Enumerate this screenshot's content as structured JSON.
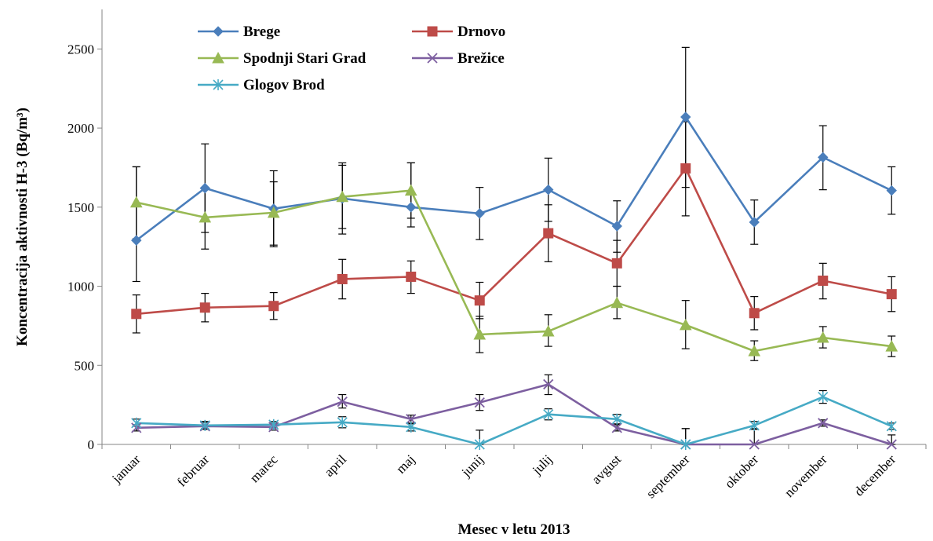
{
  "chart_data": {
    "type": "line",
    "xlabel": "Mesec v letu 2013",
    "ylabel": "Koncentracija aktivnosti H-3 (Bq/m³)",
    "ylim": [
      0,
      2750
    ],
    "yticks": [
      "0",
      "500",
      "1000",
      "1500",
      "2000",
      "2500"
    ],
    "grid": false,
    "legend_position": "top-left",
    "categories": [
      "januar",
      "februar",
      "marec",
      "april",
      "maj",
      "junij",
      "julij",
      "avgust",
      "september",
      "oktober",
      "november",
      "december"
    ],
    "series": [
      {
        "name": "Brege",
        "color": "#4a7ebb",
        "marker": "diamond",
        "values": [
          1290,
          1620,
          1490,
          1555,
          1500,
          1460,
          1610,
          1380,
          2070,
          1405,
          1815,
          1605
        ],
        "err_low": [
          1030,
          1340,
          1250,
          1330,
          1375,
          1295,
          1410,
          1215,
          1625,
          1265,
          1610,
          1455
        ],
        "err_high": [
          1755,
          1900,
          1730,
          1780,
          1780,
          1625,
          1810,
          1540,
          2510,
          1545,
          2015,
          1755
        ]
      },
      {
        "name": "Drnovo",
        "color": "#be4b48",
        "marker": "square",
        "values": [
          825,
          865,
          875,
          1045,
          1060,
          910,
          1335,
          1145,
          1745,
          830,
          1035,
          950
        ],
        "err_low": [
          705,
          775,
          790,
          920,
          955,
          795,
          1155,
          1000,
          1445,
          725,
          920,
          840
        ],
        "err_high": [
          945,
          955,
          960,
          1170,
          1160,
          1025,
          1515,
          1290,
          2040,
          935,
          1145,
          1060
        ]
      },
      {
        "name": "Spodnji Stari Grad",
        "color": "#98b954",
        "marker": "triangle",
        "values": [
          1530,
          1435,
          1465,
          1565,
          1605,
          695,
          715,
          895,
          755,
          590,
          675,
          620
        ],
        "err_low": [
          1300,
          1235,
          1260,
          1365,
          1430,
          580,
          620,
          795,
          605,
          530,
          610,
          555
        ],
        "err_high": [
          1755,
          1620,
          1660,
          1765,
          1780,
          810,
          820,
          1000,
          910,
          655,
          745,
          685
        ]
      },
      {
        "name": "Brežice",
        "color": "#7d5fa0",
        "marker": "x",
        "values": [
          105,
          115,
          110,
          270,
          160,
          265,
          380,
          105,
          0,
          0,
          135,
          0
        ],
        "err_low": [
          85,
          95,
          90,
          230,
          130,
          215,
          315,
          85,
          0,
          0,
          115,
          0
        ],
        "err_high": [
          125,
          140,
          135,
          315,
          185,
          315,
          440,
          125,
          100,
          100,
          155,
          60
        ]
      },
      {
        "name": "Glogov Brod",
        "color": "#46aac5",
        "marker": "star",
        "values": [
          135,
          120,
          125,
          140,
          110,
          0,
          190,
          160,
          0,
          120,
          300,
          115
        ],
        "err_low": [
          115,
          100,
          105,
          105,
          85,
          0,
          155,
          130,
          0,
          95,
          260,
          95
        ],
        "err_high": [
          160,
          145,
          145,
          175,
          135,
          90,
          225,
          190,
          100,
          145,
          340,
          135
        ]
      }
    ]
  }
}
